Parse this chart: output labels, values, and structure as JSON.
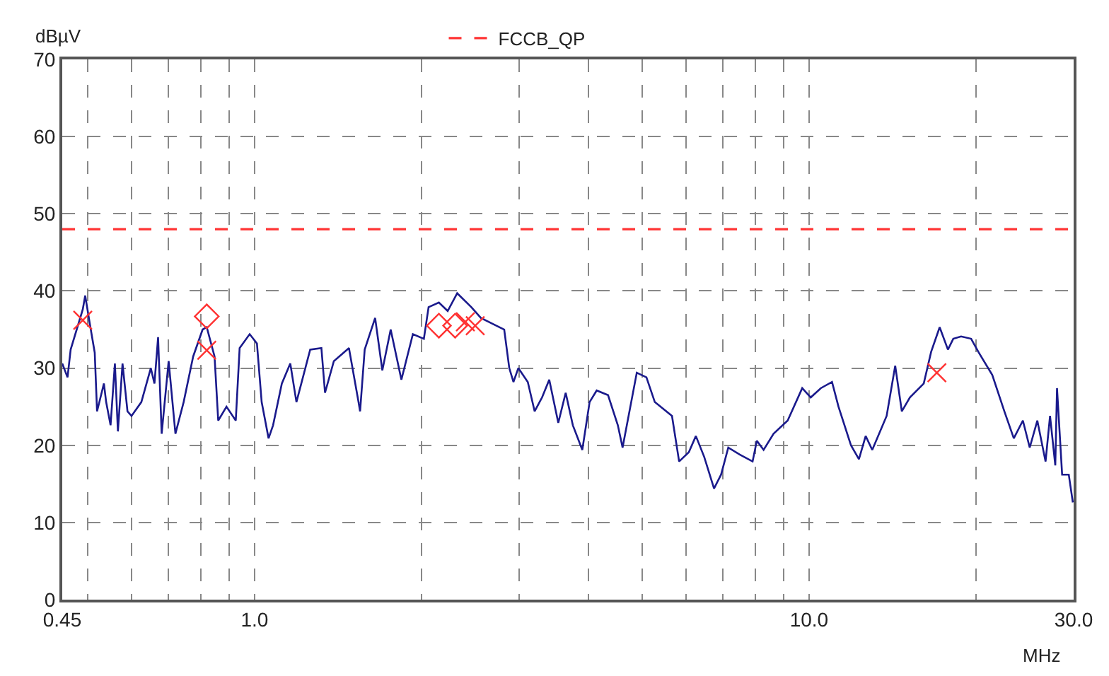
{
  "chart_data": {
    "type": "line",
    "xlabel": "MHz",
    "ylabel": "dBµV",
    "log": "x",
    "grid": true,
    "legend": "top",
    "xlim": [
      0.45,
      30
    ],
    "ylim": [
      0,
      70
    ],
    "xticks": [
      0.45,
      {
        "value": 0.5,
        "label": null
      },
      {
        "value": 0.6,
        "label": null
      },
      {
        "value": 0.7,
        "label": null
      },
      {
        "value": 0.8,
        "label": null
      },
      {
        "value": 0.9,
        "label": null
      },
      {
        "value": 1,
        "label": "1.0"
      },
      {
        "value": 2,
        "label": null
      },
      {
        "value": 3,
        "label": null
      },
      {
        "value": 4,
        "label": null
      },
      {
        "value": 5,
        "label": null
      },
      {
        "value": 6,
        "label": null
      },
      {
        "value": 7,
        "label": null
      },
      {
        "value": 8,
        "label": null
      },
      {
        "value": 9,
        "label": null
      },
      {
        "value": 10,
        "label": "10.0"
      },
      {
        "value": 20,
        "label": null
      },
      {
        "value": 30,
        "label": "30.0"
      }
    ],
    "yticks": [
      0,
      10,
      20,
      30,
      40,
      50,
      60,
      70
    ],
    "series": [
      {
        "color": "#1a1a8c",
        "line_style": "solid",
        "marker": "none",
        "x": [
          0.45,
          0.46,
          0.466,
          0.49,
          0.495,
          0.505,
          0.515,
          0.52,
          0.535,
          0.54,
          0.55,
          0.56,
          0.567,
          0.578,
          0.59,
          0.6,
          0.625,
          0.65,
          0.66,
          0.67,
          0.68,
          0.7,
          0.72,
          0.745,
          0.775,
          0.806,
          0.82,
          0.847,
          0.86,
          0.89,
          0.925,
          0.94,
          0.98,
          1.01,
          1.03,
          1.06,
          1.08,
          1.12,
          1.16,
          1.19,
          1.26,
          1.32,
          1.34,
          1.39,
          1.48,
          1.54,
          1.55,
          1.58,
          1.65,
          1.7,
          1.76,
          1.84,
          1.93,
          2.02,
          2.06,
          2.15,
          2.23,
          2.32,
          2.46,
          2.56,
          2.71,
          2.82,
          2.88,
          2.93,
          2.99,
          3.11,
          3.2,
          3.3,
          3.4,
          3.53,
          3.64,
          3.75,
          3.9,
          4.02,
          4.14,
          4.34,
          4.52,
          4.61,
          4.89,
          5.09,
          5.27,
          5.66,
          5.83,
          6.07,
          6.25,
          6.47,
          6.74,
          6.94,
          7.15,
          7.5,
          7.91,
          8.05,
          8.28,
          8.63,
          9.15,
          9.72,
          10.07,
          10.5,
          11,
          11.3,
          11.9,
          12.3,
          12.65,
          13,
          13.8,
          14.3,
          14.7,
          15.2,
          16.1,
          16.6,
          17.2,
          17.8,
          18.2,
          18.8,
          19.6,
          20.2,
          21.4,
          22.5,
          23.4,
          24.3,
          25,
          25.8,
          26.7,
          27.2,
          27.8,
          28,
          28.6,
          29.4,
          29.9
        ],
        "values": [
          30.6,
          28.8,
          32.4,
          37.6,
          39.4,
          35.6,
          32,
          24.4,
          28,
          25.6,
          22.6,
          30.6,
          21.8,
          30.6,
          24.4,
          23.8,
          25.6,
          30,
          28,
          34,
          21.5,
          30.9,
          21.5,
          25.6,
          31.5,
          35,
          35.3,
          31.5,
          23.2,
          25,
          23.2,
          32.6,
          34.4,
          33.2,
          25.6,
          20.9,
          22.6,
          28,
          30.6,
          25.6,
          32.4,
          32.6,
          26.8,
          30.9,
          32.6,
          25.6,
          24.4,
          32.4,
          36.5,
          29.7,
          35,
          28.5,
          34.4,
          33.8,
          37.9,
          38.5,
          37.4,
          39.7,
          37.9,
          36.5,
          35.6,
          35,
          30,
          28.2,
          30,
          28.2,
          24.4,
          26.2,
          28.5,
          22.9,
          26.8,
          22.6,
          19.4,
          25.6,
          27.1,
          26.5,
          22.6,
          19.7,
          29.4,
          28.8,
          25.6,
          23.8,
          17.9,
          19.1,
          21.2,
          18.5,
          14.4,
          16.2,
          19.7,
          18.8,
          17.9,
          20.6,
          19.4,
          21.5,
          23.2,
          27.4,
          26.2,
          27.4,
          28.2,
          25,
          20,
          18.2,
          21.2,
          19.4,
          23.8,
          30.3,
          24.4,
          26.2,
          28,
          32.1,
          35.3,
          32.4,
          33.8,
          34.1,
          33.8,
          32.1,
          29.1,
          24.4,
          20.9,
          23.2,
          19.7,
          23.2,
          17.9,
          23.8,
          17.4,
          27.4,
          16.2,
          16.2,
          12.6
        ]
      },
      {
        "name": "FCCB_QP",
        "color": "#ff3333",
        "line_style": "dashed",
        "marker": "none",
        "x": [
          0.45,
          30
        ],
        "values": [
          48,
          48
        ]
      },
      {
        "type": "scatter",
        "color": "#ff3333",
        "marker": "cross",
        "x": [
          0.49,
          0.82,
          2.4,
          2.5,
          17
        ],
        "values": [
          36.2,
          32.3,
          36,
          35.5,
          29.4
        ]
      },
      {
        "type": "scatter",
        "color": "#ff3333",
        "marker": "diamond",
        "x": [
          0.82,
          2.15,
          2.3
        ],
        "values": [
          36.7,
          35.5,
          35.5
        ]
      }
    ]
  }
}
